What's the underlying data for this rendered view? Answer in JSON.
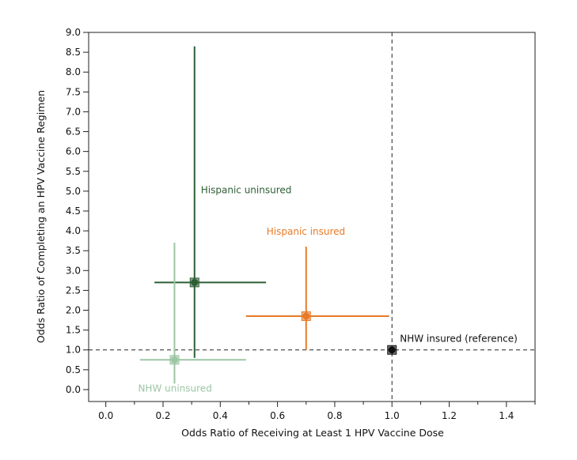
{
  "chart_data": {
    "type": "scatter",
    "title": "",
    "xlabel": "Odds Ratio of Receiving at Least 1 HPV Vaccine Dose",
    "ylabel": "Odds Ratio of Completing an HPV Vaccine Regimen",
    "xlim": [
      -0.06,
      1.5
    ],
    "ylim": [
      -0.3,
      9.0
    ],
    "x_ticks": [
      0.0,
      0.2,
      0.4,
      0.6,
      0.8,
      1.0,
      1.2,
      1.4
    ],
    "x_tick_labels": [
      "0.0",
      "0.2",
      "0.4",
      "0.6",
      "0.8",
      "1.0",
      "1.2",
      "1.4"
    ],
    "y_ticks": [
      0.0,
      0.5,
      1.0,
      1.5,
      2.0,
      2.5,
      3.0,
      3.5,
      4.0,
      4.5,
      5.0,
      5.5,
      6.0,
      6.5,
      7.0,
      7.5,
      8.0,
      8.5,
      9.0
    ],
    "y_tick_labels": [
      "0.0",
      "0.5",
      "1.0",
      "1.5",
      "2.0",
      "2.5",
      "3.0",
      "3.5",
      "4.0",
      "4.5",
      "5.0",
      "5.5",
      "6.0",
      "6.5",
      "7.0",
      "7.5",
      "8.0",
      "8.5",
      "9.0"
    ],
    "grid": false,
    "reference_lines": {
      "x": 1.0,
      "y": 1.0,
      "style": "dashed"
    },
    "series": [
      {
        "label": "Hispanic uninsured",
        "color": "#2d5e34",
        "x": 0.31,
        "y": 2.7,
        "x_ci": [
          0.17,
          0.56
        ],
        "y_ci": [
          0.8,
          8.65
        ]
      },
      {
        "label": "Hispanic insured",
        "color": "#e87a26",
        "x": 0.7,
        "y": 1.85,
        "x_ci": [
          0.49,
          0.99
        ],
        "y_ci": [
          1.0,
          3.6
        ]
      },
      {
        "label": "NHW uninsured",
        "color": "#9cc6a4",
        "x": 0.24,
        "y": 0.75,
        "x_ci": [
          0.12,
          0.49
        ],
        "y_ci": [
          0.15,
          3.7
        ]
      },
      {
        "label": "NHW insured (reference)",
        "color": "#111111",
        "x": 1.0,
        "y": 1.0,
        "x_ci": null,
        "y_ci": null
      }
    ]
  }
}
